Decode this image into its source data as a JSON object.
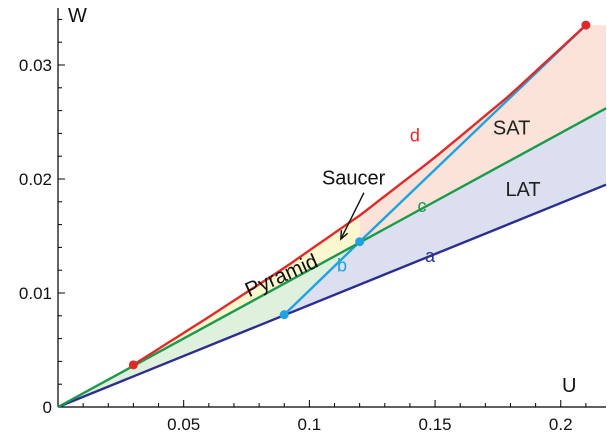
{
  "chart_data": {
    "type": "line",
    "title": "",
    "xlabel": "U",
    "ylabel": "W",
    "xlim": [
      0,
      0.218
    ],
    "ylim": [
      0,
      0.035
    ],
    "grid": false,
    "x_ticks": [
      {
        "value": 0.05,
        "label": "0.05"
      },
      {
        "value": 0.1,
        "label": "0.1"
      },
      {
        "value": 0.15,
        "label": "0.15"
      },
      {
        "value": 0.2,
        "label": "0.2"
      }
    ],
    "y_ticks": [
      {
        "value": 0,
        "label": "0"
      },
      {
        "value": 0.01,
        "label": "0.01"
      },
      {
        "value": 0.02,
        "label": "0.02"
      },
      {
        "value": 0.03,
        "label": "0.03"
      }
    ],
    "series": [
      {
        "name": "a",
        "color": "#2a2f8f",
        "x": [
          0,
          0.218
        ],
        "y": [
          0,
          0.0195
        ]
      },
      {
        "name": "b",
        "color": "#1fa3e0",
        "x": [
          0.09,
          0.12,
          0.21
        ],
        "y": [
          0.0081,
          0.0145,
          0.0335
        ]
      },
      {
        "name": "c",
        "color": "#1a9a4a",
        "x": [
          0,
          0.218
        ],
        "y": [
          0,
          0.0262
        ]
      },
      {
        "name": "d",
        "color": "#e02a2a",
        "x": [
          0.03,
          0.06,
          0.09,
          0.12,
          0.15,
          0.18,
          0.21
        ],
        "y": [
          0.0037,
          0.0079,
          0.0122,
          0.0168,
          0.0219,
          0.0274,
          0.0335
        ]
      }
    ],
    "points": [
      {
        "x": 0.03,
        "y": 0.0037,
        "color": "#e02a2a"
      },
      {
        "x": 0.21,
        "y": 0.0335,
        "color": "#e02a2a"
      },
      {
        "x": 0.09,
        "y": 0.0081,
        "color": "#1fa3e0"
      },
      {
        "x": 0.12,
        "y": 0.0145,
        "color": "#1fa3e0"
      }
    ],
    "regions": [
      {
        "label": "SAT",
        "fill": "#fbe3d9"
      },
      {
        "label": "LAT",
        "fill": "#dcdff0"
      },
      {
        "label": "Pyramid",
        "fill": "#dff0dc"
      },
      {
        "label": "Saucer",
        "fill": "#fbf7cf"
      }
    ],
    "annotations": [
      {
        "text": "d",
        "x": 0.14,
        "y": 0.0233,
        "color": "#e02a2a",
        "size": 18
      },
      {
        "text": "c",
        "x": 0.143,
        "y": 0.0171,
        "color": "#1a9a4a",
        "size": 18
      },
      {
        "text": "b",
        "x": 0.111,
        "y": 0.0119,
        "color": "#1fa3e0",
        "size": 18
      },
      {
        "text": "a",
        "x": 0.146,
        "y": 0.0127,
        "color": "#2a2f8f",
        "size": 18
      },
      {
        "text": "SAT",
        "x": 0.173,
        "y": 0.0239,
        "color": "#222222",
        "size": 20
      },
      {
        "text": "LAT",
        "x": 0.178,
        "y": 0.0185,
        "color": "#222222",
        "size": 20
      },
      {
        "text": "Saucer",
        "x": 0.105,
        "y": 0.0195,
        "color": "#111111",
        "size": 20
      },
      {
        "text": "Pyramid",
        "x": 0.076,
        "y": 0.0096,
        "color": "#111111",
        "size": 21,
        "rotate": -24
      }
    ]
  }
}
